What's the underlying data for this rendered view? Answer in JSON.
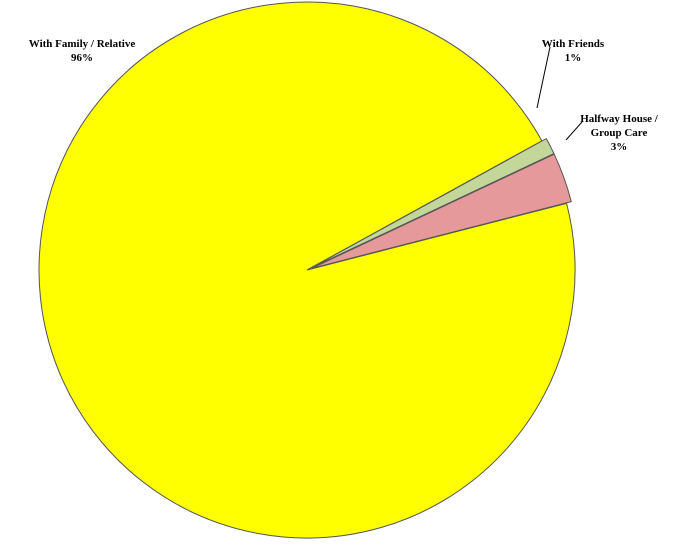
{
  "chart_data": {
    "type": "pie",
    "slices": [
      {
        "label_lines": [
          "With Family / Relative"
        ],
        "percent_label": "96%",
        "value": 96,
        "color": "#ffff00"
      },
      {
        "label_lines": [
          "With Friends"
        ],
        "percent_label": "1%",
        "value": 1,
        "color": "#c4d79b"
      },
      {
        "label_lines": [
          "Halfway House /",
          "Group Care"
        ],
        "percent_label": "3%",
        "value": 3,
        "color": "#e6999a"
      }
    ],
    "exploded_slices": [
      "With Friends",
      "Halfway House / Group Care"
    ],
    "start_angle_deg": -14.4,
    "title": "",
    "legend": "none"
  }
}
